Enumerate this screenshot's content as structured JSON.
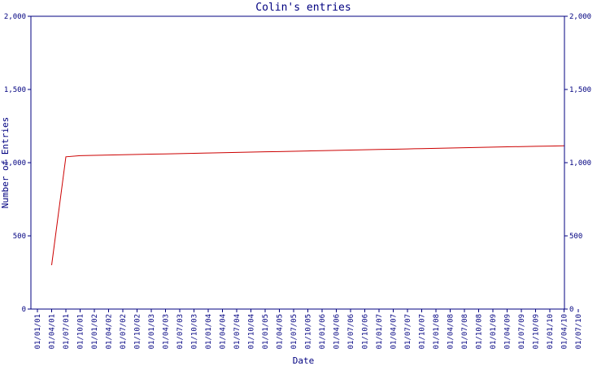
{
  "chart_data": {
    "type": "line",
    "title": "Colin's entries",
    "x_label": "Date",
    "y_label": "Number of Entries",
    "categories": [
      "01/01/01",
      "01/04/01",
      "01/07/01",
      "01/10/01",
      "01/01/02",
      "01/04/02",
      "01/07/02",
      "01/10/02",
      "01/01/03",
      "01/04/03",
      "01/07/03",
      "01/10/03",
      "01/01/04",
      "01/04/04",
      "01/07/04",
      "01/10/04",
      "01/01/05",
      "01/04/05",
      "01/07/05",
      "01/10/05",
      "01/01/06",
      "01/04/06",
      "01/07/06",
      "01/10/06",
      "01/01/07",
      "01/04/07",
      "01/07/07",
      "01/10/07",
      "01/01/08",
      "01/04/08",
      "01/07/08",
      "01/10/08",
      "01/01/09",
      "01/04/09",
      "01/07/09",
      "01/10/09",
      "01/01/10",
      "01/04/10",
      "01/07/10"
    ],
    "series": [
      {
        "name": "Colin",
        "color": "#cc0000",
        "values": [
          null,
          300,
          1040,
          1048,
          1050,
          1052,
          1054,
          1056,
          1058,
          1060,
          1062,
          1064,
          1066,
          1068,
          1070,
          1072,
          1074,
          1076,
          1078,
          1080,
          1082,
          1084,
          1086,
          1088,
          1090,
          1092,
          1094,
          1096,
          1098,
          1100,
          1102,
          1104,
          1106,
          1108,
          1110,
          1112,
          1113,
          1115,
          null
        ]
      }
    ],
    "ylim": [
      0,
      2000
    ],
    "yticks": [
      0,
      500,
      {
        "value": 1000,
        "label": "1,000"
      },
      {
        "value": 1500,
        "label": "1,500"
      },
      {
        "value": 2000,
        "label": "2,000"
      }
    ],
    "axis_color": "#000080",
    "grid": false
  }
}
